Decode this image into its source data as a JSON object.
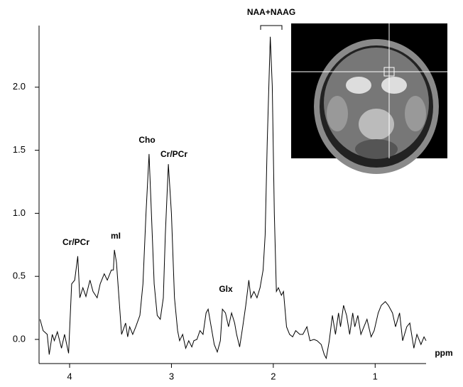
{
  "chart_data": {
    "type": "line",
    "x_label": "ppm",
    "xlim": [
      4.3,
      0.5
    ],
    "ylim": [
      -0.2,
      2.5
    ],
    "xticks": [
      4,
      3,
      2,
      1
    ],
    "yticks": [
      {
        "value": 0,
        "label": "0.0"
      },
      0.5,
      {
        "value": 1,
        "label": "1.0"
      },
      1.5,
      {
        "value": 2,
        "label": "2.0"
      }
    ],
    "annotations": [
      "Cr/PCr",
      "mI",
      "Cho",
      "Cr/PCr",
      "Glx",
      "NAA+NAAG"
    ],
    "series": [
      {
        "color": "#000000",
        "x": [
          4.29,
          4.26,
          4.22,
          4.2,
          4.17,
          4.15,
          4.12,
          4.08,
          4.05,
          4.01,
          3.98,
          3.95,
          3.92,
          3.9,
          3.87,
          3.84,
          3.8,
          3.77,
          3.73,
          3.7,
          3.66,
          3.63,
          3.59,
          3.57,
          3.56,
          3.54,
          3.51,
          3.49,
          3.45,
          3.43,
          3.41,
          3.38,
          3.35,
          3.31,
          3.28,
          3.25,
          3.22,
          3.2,
          3.17,
          3.14,
          3.11,
          3.08,
          3.06,
          3.03,
          3.0,
          2.97,
          2.94,
          2.92,
          2.89,
          2.86,
          2.83,
          2.8,
          2.78,
          2.75,
          2.72,
          2.69,
          2.66,
          2.64,
          2.61,
          2.58,
          2.55,
          2.52,
          2.5,
          2.47,
          2.44,
          2.41,
          2.38,
          2.36,
          2.33,
          2.3,
          2.27,
          2.24,
          2.22,
          2.19,
          2.16,
          2.13,
          2.1,
          2.08,
          2.06,
          2.03,
          2.01,
          1.99,
          1.97,
          1.95,
          1.92,
          1.9,
          1.87,
          1.84,
          1.81,
          1.78,
          1.74,
          1.71,
          1.67,
          1.64,
          1.6,
          1.57,
          1.53,
          1.5,
          1.48,
          1.45,
          1.42,
          1.39,
          1.36,
          1.34,
          1.31,
          1.28,
          1.25,
          1.22,
          1.2,
          1.17,
          1.14,
          1.11,
          1.08,
          1.04,
          1.01,
          0.97,
          0.94,
          0.9,
          0.87,
          0.83,
          0.8,
          0.76,
          0.73,
          0.69,
          0.66,
          0.62,
          0.59,
          0.55,
          0.52,
          0.5
        ],
        "values": [
          0.16,
          0.07,
          0.04,
          -0.12,
          0.04,
          -0.01,
          0.06,
          -0.07,
          0.04,
          -0.11,
          0.44,
          0.47,
          0.66,
          0.33,
          0.41,
          0.34,
          0.47,
          0.38,
          0.33,
          0.44,
          0.52,
          0.47,
          0.55,
          0.55,
          0.71,
          0.61,
          0.27,
          0.04,
          0.13,
          0.02,
          0.1,
          0.04,
          0.1,
          0.19,
          0.44,
          1.0,
          1.47,
          1.06,
          0.44,
          0.19,
          0.16,
          0.33,
          0.83,
          1.39,
          1.0,
          0.33,
          0.07,
          -0.01,
          0.04,
          -0.07,
          -0.01,
          -0.06,
          -0.01,
          0,
          0.07,
          0.04,
          0.21,
          0.24,
          0.1,
          -0.04,
          -0.1,
          -0.01,
          0.24,
          0.21,
          0.1,
          0.21,
          0.13,
          0.04,
          -0.06,
          0.1,
          0.27,
          0.47,
          0.33,
          0.38,
          0.33,
          0.41,
          0.55,
          0.83,
          1.56,
          2.4,
          2.01,
          1.0,
          0.38,
          0.41,
          0.35,
          0.38,
          0.1,
          0.04,
          0.02,
          0.07,
          0.04,
          0.04,
          0.1,
          -0.01,
          0,
          -0.01,
          -0.04,
          -0.12,
          -0.15,
          -0.01,
          0.19,
          0.04,
          0.21,
          0.1,
          0.27,
          0.19,
          0.04,
          0.21,
          0.1,
          0.19,
          0.04,
          0.1,
          0.16,
          0.02,
          0.07,
          0.21,
          0.27,
          0.3,
          0.27,
          0.21,
          0.1,
          0.21,
          -0.01,
          0.1,
          0.13,
          -0.07,
          0.04,
          -0.04,
          0.02,
          -0.01
        ]
      }
    ]
  }
}
